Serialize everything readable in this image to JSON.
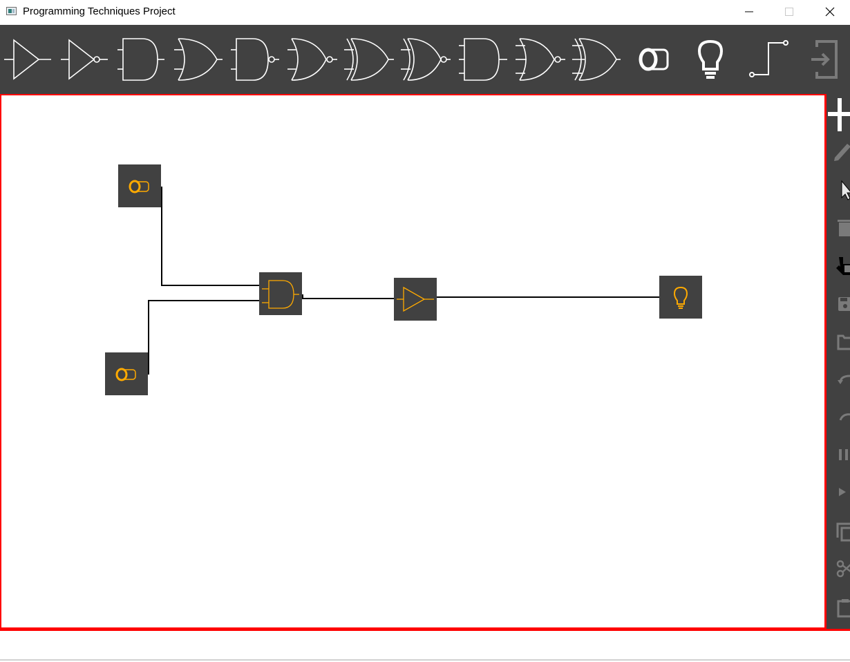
{
  "window": {
    "title": "Programming Techniques Project",
    "controls": [
      "minimize",
      "maximize",
      "close"
    ]
  },
  "toolbar": {
    "tools": [
      {
        "name": "buffer-gate",
        "icon": "buffer-gate-icon"
      },
      {
        "name": "not-gate",
        "icon": "not-gate-icon"
      },
      {
        "name": "and-gate",
        "icon": "and-gate-icon"
      },
      {
        "name": "or-gate",
        "icon": "or-gate-icon"
      },
      {
        "name": "nand-gate",
        "icon": "nand-gate-icon"
      },
      {
        "name": "nor-gate",
        "icon": "nor-gate-icon"
      },
      {
        "name": "xor-gate",
        "icon": "xor-gate-icon"
      },
      {
        "name": "xnor-gate",
        "icon": "xnor-gate-icon"
      },
      {
        "name": "and3-gate",
        "icon": "and3-gate-icon"
      },
      {
        "name": "nor3-gate",
        "icon": "nor3-gate-icon"
      },
      {
        "name": "xor3-gate",
        "icon": "xor3-gate-icon"
      },
      {
        "name": "switch",
        "icon": "switch-icon"
      },
      {
        "name": "led",
        "icon": "lightbulb-icon"
      },
      {
        "name": "wire",
        "icon": "wire-icon"
      },
      {
        "name": "exit",
        "icon": "exit-icon"
      }
    ]
  },
  "side_toolbar": {
    "tools": [
      "add",
      "edit",
      "select",
      "delete",
      "move",
      "save",
      "load",
      "undo",
      "redo",
      "pause",
      "simulate",
      "copy",
      "cut",
      "paste"
    ]
  },
  "circuit": {
    "components": [
      {
        "type": "switch",
        "icon": "switch-icon"
      },
      {
        "type": "switch",
        "icon": "switch-icon"
      },
      {
        "type": "and-gate",
        "icon": "and-gate-icon"
      },
      {
        "type": "buffer-gate",
        "icon": "buffer-gate-icon"
      },
      {
        "type": "led",
        "icon": "lightbulb-icon"
      }
    ],
    "colors": {
      "component_bg": "#414141",
      "component_symbol": "#ffaa00",
      "wire": "#000000",
      "accent_border": "#ff0000"
    }
  }
}
